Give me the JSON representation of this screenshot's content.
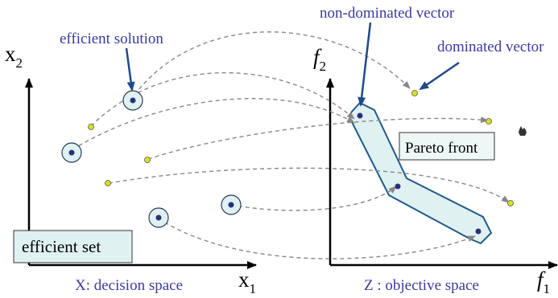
{
  "decision_space": {
    "axis_x_label": "x",
    "axis_x_sub": "1",
    "axis_y_label": "x",
    "axis_y_sub": "2",
    "caption": "X: decision space",
    "box_label": "efficient set",
    "annotation": "efficient solution"
  },
  "objective_space": {
    "axis_x_label": "f",
    "axis_x_sub": "1",
    "axis_y_label": "f",
    "axis_y_sub": "2",
    "caption": "Z : objective space",
    "box_label": "Pareto front",
    "annotation_nondominated": "non-dominated vector",
    "annotation_dominated": "dominated vector"
  },
  "colors": {
    "annotation_blue": "#3a3aa0",
    "arrow_blue": "#1f4a8a",
    "front_fill": "#e0f1f1",
    "front_stroke": "#1f5a8a",
    "efficient_point": "#2b2f7a",
    "dominated_point": "#d8e020",
    "dashed_line": "#888888"
  },
  "icons": {
    "cursor": "hand-cursor-icon"
  }
}
